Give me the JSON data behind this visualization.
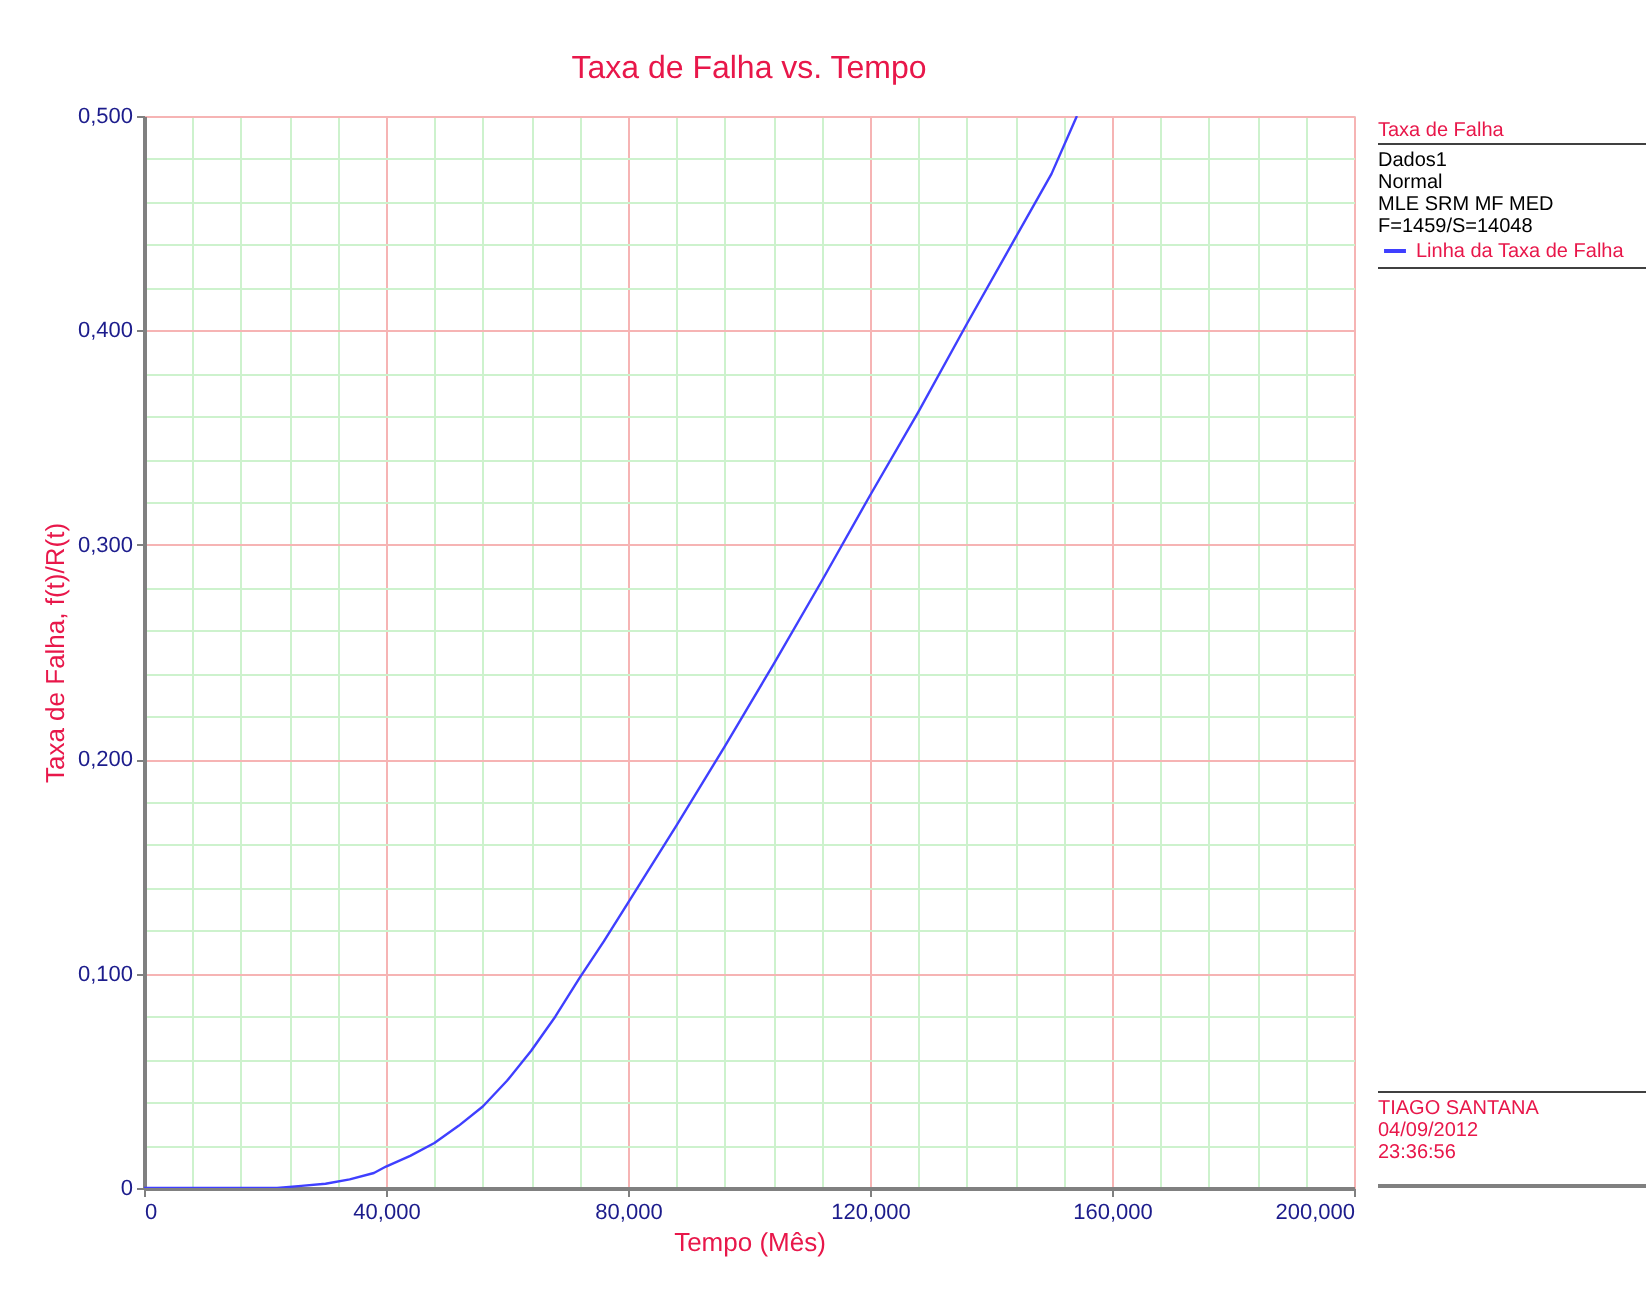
{
  "chart_data": {
    "type": "line",
    "title": "Taxa de Falha vs. Tempo",
    "xlabel": "Tempo (Mês)",
    "ylabel": "Taxa de Falha, f(t)/R(t)",
    "legend_title": "Taxa de Falha",
    "annotations": [
      "Dados1",
      "Normal",
      "MLE SRM MF MED",
      "F=1459/S=14048",
      "TIAGO SANTANA",
      "04/09/2012",
      "23:36:56"
    ],
    "x": [
      0,
      22,
      26,
      30,
      34,
      38,
      40,
      44,
      48,
      52,
      56,
      60,
      64,
      68,
      72,
      76,
      80,
      88,
      96,
      104,
      112,
      120,
      128,
      136,
      144,
      150,
      154.2
    ],
    "series": [
      {
        "name": "Linha da Taxa de Falha",
        "color": "#3f3fff",
        "values": [
          0,
          0,
          0.001,
          0.002,
          0.004,
          0.007,
          0.01,
          0.015,
          0.021,
          0.029,
          0.038,
          0.05,
          0.064,
          0.08,
          0.098,
          0.115,
          0.133,
          0.169,
          0.206,
          0.244,
          0.283,
          0.323,
          0.362,
          0.403,
          0.443,
          0.473,
          0.5
        ]
      }
    ],
    "xlim": [
      0,
      200
    ],
    "xticks": [
      0,
      {
        "value": 8,
        "label": null
      },
      {
        "value": 16,
        "label": null
      },
      {
        "value": 24,
        "label": null
      },
      {
        "value": 32,
        "label": null
      },
      {
        "value": 40,
        "label": "40,000"
      },
      {
        "value": 48,
        "label": null
      },
      {
        "value": 56,
        "label": null
      },
      {
        "value": 64,
        "label": null
      },
      {
        "value": 72,
        "label": null
      },
      {
        "value": 80,
        "label": "80,000"
      },
      {
        "value": 88,
        "label": null
      },
      {
        "value": 96,
        "label": null
      },
      {
        "value": 104,
        "label": null
      },
      {
        "value": 112,
        "label": null
      },
      {
        "value": 120,
        "label": "120,000"
      },
      {
        "value": 128,
        "label": null
      },
      {
        "value": 136,
        "label": null
      },
      {
        "value": 144,
        "label": null
      },
      {
        "value": 152,
        "label": null
      },
      {
        "value": 160,
        "label": "160,000"
      },
      {
        "value": 168,
        "label": null
      },
      {
        "value": 176,
        "label": null
      },
      {
        "value": 184,
        "label": null
      },
      {
        "value": 192,
        "label": null
      },
      {
        "value": 200,
        "label": "200,000"
      }
    ],
    "ylim": [
      0,
      0.5
    ],
    "yticks": [
      0,
      {
        "value": 0.02,
        "label": null
      },
      {
        "value": 0.04,
        "label": null
      },
      {
        "value": 0.06,
        "label": null
      },
      {
        "value": 0.08,
        "label": null
      },
      {
        "value": 0.1,
        "label": "0,100"
      },
      {
        "value": 0.12,
        "label": null
      },
      {
        "value": 0.14,
        "label": null
      },
      {
        "value": 0.16,
        "label": null
      },
      {
        "value": 0.18,
        "label": null
      },
      {
        "value": 0.2,
        "label": "0,200"
      },
      {
        "value": 0.22,
        "label": null
      },
      {
        "value": 0.24,
        "label": null
      },
      {
        "value": 0.26,
        "label": null
      },
      {
        "value": 0.28,
        "label": null
      },
      {
        "value": 0.3,
        "label": "0,300"
      },
      {
        "value": 0.32,
        "label": null
      },
      {
        "value": 0.34,
        "label": null
      },
      {
        "value": 0.36,
        "label": null
      },
      {
        "value": 0.38,
        "label": null
      },
      {
        "value": 0.4,
        "label": "0,400"
      },
      {
        "value": 0.42,
        "label": null
      },
      {
        "value": 0.44,
        "label": null
      },
      {
        "value": 0.46,
        "label": null
      },
      {
        "value": 0.48,
        "label": null
      },
      {
        "value": 0.5,
        "label": "0,500"
      }
    ],
    "grid": true,
    "legend": "right"
  }
}
